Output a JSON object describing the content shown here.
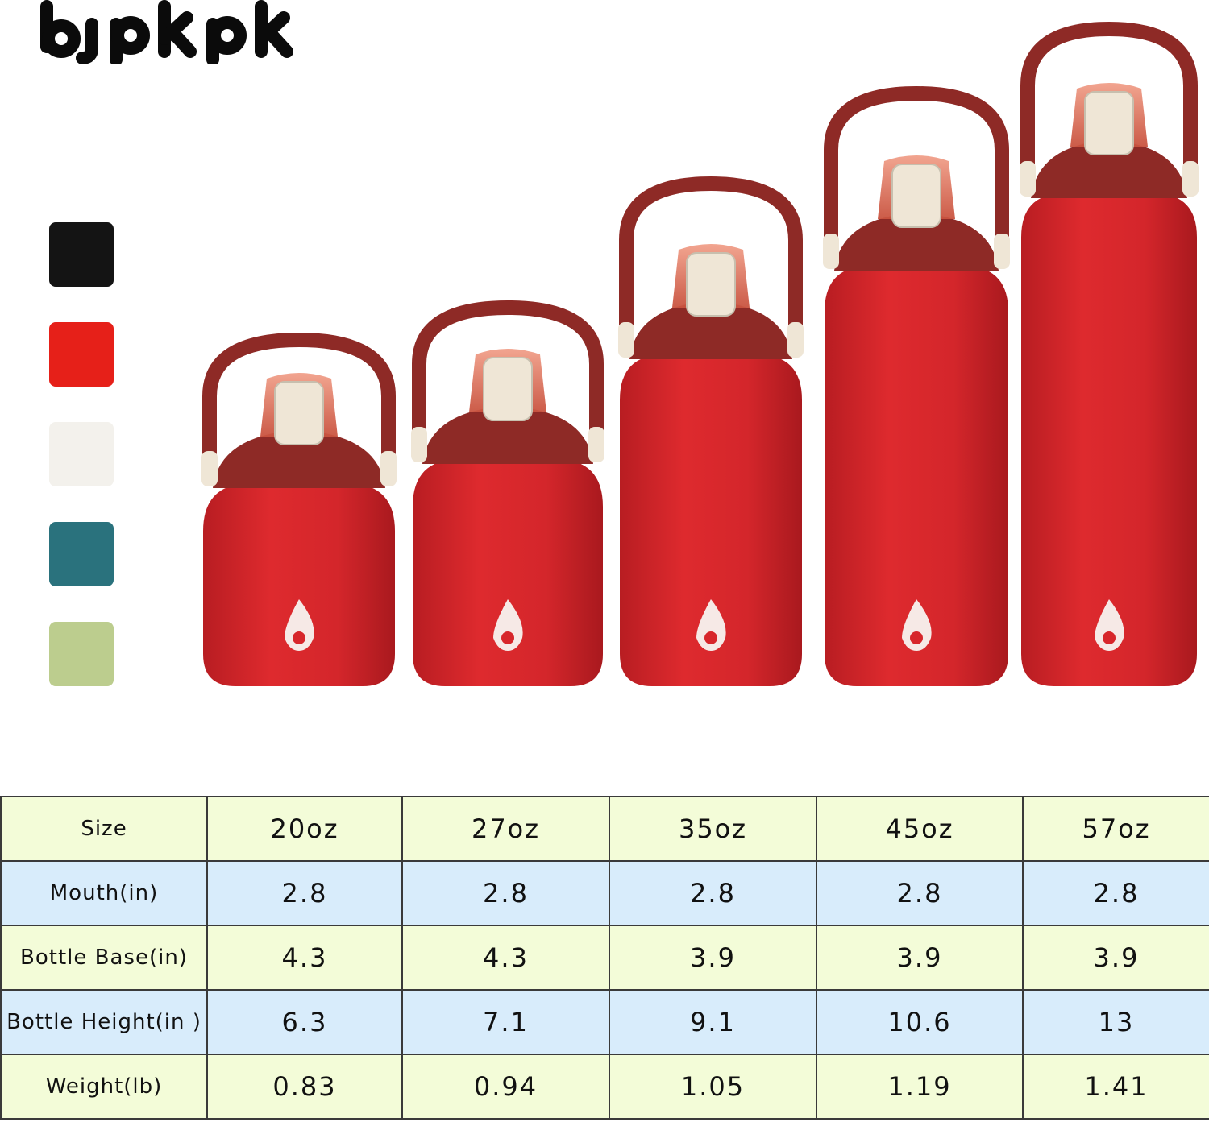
{
  "brand": {
    "logo_text": "BJPKPK"
  },
  "colors": {
    "swatches": [
      "#141414",
      "#e62019",
      "#f3f1ec",
      "#2a727d",
      "#bccd8e"
    ],
    "bottle_body": "#d7262b",
    "bottle_lid": "#8e2a26",
    "button": "#efe6d6"
  },
  "bottles": [
    {
      "size": "20oz"
    },
    {
      "size": "27oz"
    },
    {
      "size": "35oz"
    },
    {
      "size": "45oz"
    },
    {
      "size": "57oz"
    }
  ],
  "table": {
    "header": {
      "label": "Size",
      "values": [
        "20oz",
        "27oz",
        "35oz",
        "45oz",
        "57oz"
      ]
    },
    "rows": [
      {
        "label": "Mouth(in)",
        "values": [
          "2.8",
          "2.8",
          "2.8",
          "2.8",
          "2.8"
        ]
      },
      {
        "label": "Bottle Base(in)",
        "values": [
          "4.3",
          "4.3",
          "3.9",
          "3.9",
          "3.9"
        ]
      },
      {
        "label": "Bottle Height(in )",
        "values": [
          "6.3",
          "7.1",
          "9.1",
          "10.6",
          "13"
        ]
      },
      {
        "label": "Weight(lb)",
        "values": [
          "0.83",
          "0.94",
          "1.05",
          "1.19",
          "1.41"
        ]
      }
    ]
  }
}
